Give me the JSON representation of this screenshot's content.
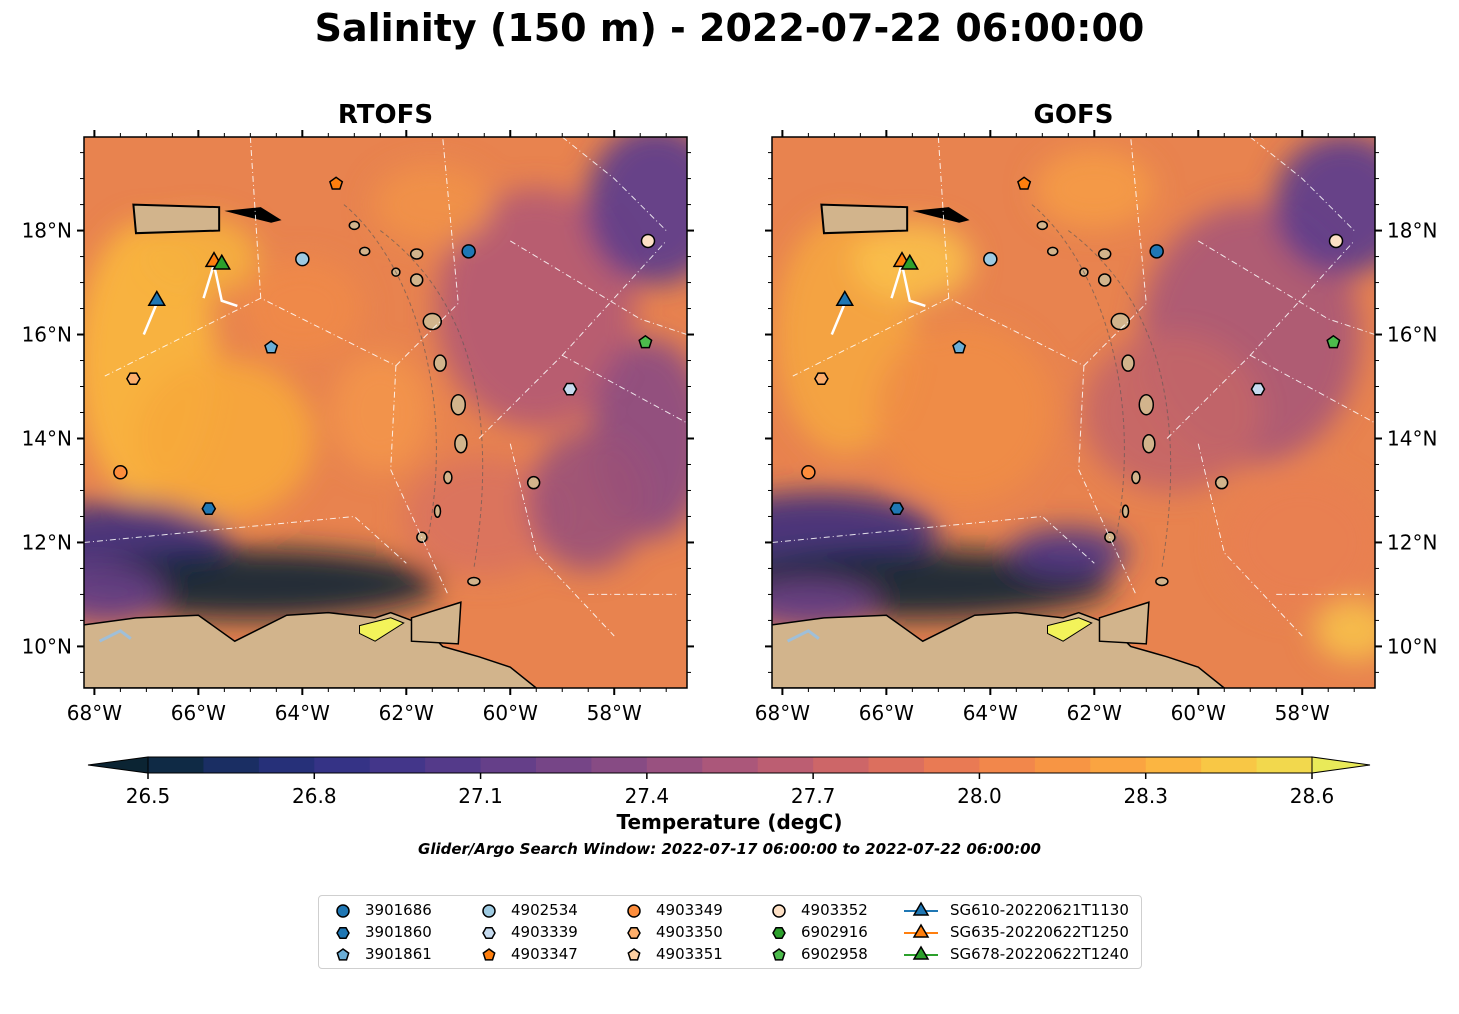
{
  "title": "Salinity (150 m) - 2022-07-22 06:00:00",
  "panels": [
    {
      "title": "RTOFS"
    },
    {
      "title": "GOFS"
    }
  ],
  "axes": {
    "lon_ticks": [
      "68°W",
      "66°W",
      "64°W",
      "62°W",
      "60°W",
      "58°W"
    ],
    "lat_ticks": [
      "18°N",
      "16°N",
      "14°N",
      "12°N",
      "10°N"
    ],
    "lon_range": [
      -68.2,
      -56.6
    ],
    "lat_range": [
      9.2,
      19.8
    ]
  },
  "colorbar": {
    "ticks": [
      "26.5",
      "26.8",
      "27.1",
      "27.4",
      "27.7",
      "28.0",
      "28.3",
      "28.6"
    ],
    "min": 26.5,
    "max": 28.6,
    "label": "Temperature (degC)",
    "extend": "both"
  },
  "search_window": "Glider/Argo Search Window: 2022-07-17 06:00:00 to 2022-07-22 06:00:00",
  "legend": {
    "columns": [
      [
        {
          "label": "3901686",
          "marker": "circle",
          "color": "#1f77b4"
        },
        {
          "label": "3901860",
          "marker": "hexagon",
          "color": "#1f77b4"
        },
        {
          "label": "3901861",
          "marker": "pentagon",
          "color": "#6baed6"
        }
      ],
      [
        {
          "label": "4902534",
          "marker": "circle",
          "color": "#9ecae1"
        },
        {
          "label": "4903339",
          "marker": "hexagon",
          "color": "#c6dbef"
        },
        {
          "label": "4903347",
          "marker": "pentagon",
          "color": "#ff7f0e"
        }
      ],
      [
        {
          "label": "4903349",
          "marker": "circle",
          "color": "#fd8d3c"
        },
        {
          "label": "4903350",
          "marker": "hexagon",
          "color": "#fdae6b"
        },
        {
          "label": "4903351",
          "marker": "pentagon",
          "color": "#fdd0a2"
        }
      ],
      [
        {
          "label": "4903352",
          "marker": "circle",
          "color": "#fde0c5"
        },
        {
          "label": "6902916",
          "marker": "hexagon",
          "color": "#2ca02c"
        },
        {
          "label": "6902958",
          "marker": "pentagon",
          "color": "#4cbb4c"
        }
      ],
      [
        {
          "label": "SG610-20220621T1130",
          "marker": "triangle",
          "color": "#1f77b4"
        },
        {
          "label": "SG635-20220622T1250",
          "marker": "triangle",
          "color": "#ff7f0e"
        },
        {
          "label": "SG678-20220622T1240",
          "marker": "triangle",
          "color": "#2ca02c"
        }
      ]
    ]
  },
  "markers": [
    {
      "id": "3901686",
      "shape": "circle",
      "color": "#1f77b4",
      "lon": -60.8,
      "lat": 17.6
    },
    {
      "id": "3901860",
      "shape": "hexagon",
      "color": "#1f77b4",
      "lon": -65.8,
      "lat": 12.65
    },
    {
      "id": "3901861",
      "shape": "pentagon",
      "color": "#6baed6",
      "lon": -64.6,
      "lat": 15.75
    },
    {
      "id": "4902534",
      "shape": "circle",
      "color": "#9ecae1",
      "lon": -64.0,
      "lat": 17.45
    },
    {
      "id": "4903339",
      "shape": "hexagon",
      "color": "#c6dbef",
      "lon": -58.85,
      "lat": 14.95
    },
    {
      "id": "4903347",
      "shape": "pentagon",
      "color": "#ff7f0e",
      "lon": -63.35,
      "lat": 18.9
    },
    {
      "id": "4903349",
      "shape": "circle",
      "color": "#fd8d3c",
      "lon": -67.5,
      "lat": 13.35
    },
    {
      "id": "4903350",
      "shape": "hexagon",
      "color": "#fdae6b",
      "lon": -67.25,
      "lat": 15.15
    },
    {
      "id": "4903352",
      "shape": "circle",
      "color": "#fde0c5",
      "lon": -57.35,
      "lat": 17.8
    },
    {
      "id": "6902958",
      "shape": "pentagon",
      "color": "#4cbb4c",
      "lon": -57.4,
      "lat": 15.85
    },
    {
      "id": "SG610-20220621T1130",
      "shape": "triangle",
      "color": "#1f77b4",
      "lon": -66.8,
      "lat": 16.65
    },
    {
      "id": "SG635-20220622T1250",
      "shape": "triangle",
      "color": "#ff7f0e",
      "lon": -65.7,
      "lat": 17.4
    },
    {
      "id": "SG678-20220622T1240",
      "shape": "triangle",
      "color": "#2ca02c",
      "lon": -65.55,
      "lat": 17.35
    }
  ],
  "glider_tracks": [
    [
      [
        -67.05,
        16.0
      ],
      [
        -66.8,
        16.6
      ]
    ],
    [
      [
        -65.9,
        16.7
      ],
      [
        -65.7,
        17.35
      ],
      [
        -65.55,
        16.65
      ],
      [
        -65.25,
        16.55
      ]
    ]
  ]
}
